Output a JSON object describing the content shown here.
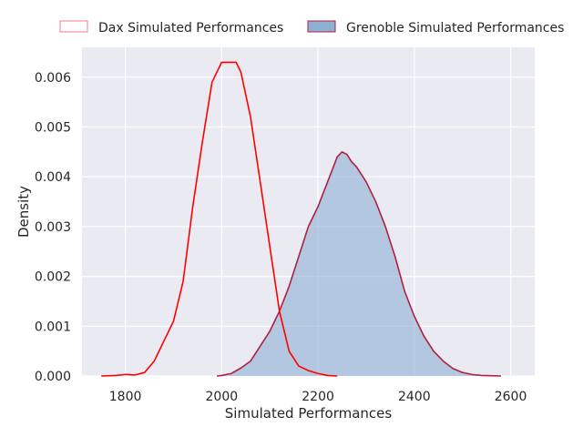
{
  "chart_data": {
    "type": "area",
    "xlabel": "Simulated Performances",
    "ylabel": "Density",
    "xlim": [
      1710,
      2650
    ],
    "ylim": [
      0,
      0.0066
    ],
    "xticks": [
      "1800",
      "2000",
      "2200",
      "2400",
      "2600"
    ],
    "yticks": [
      "0.000",
      "0.001",
      "0.002",
      "0.003",
      "0.004",
      "0.005",
      "0.006"
    ],
    "grid": true,
    "legend_position": "top",
    "series": [
      {
        "name": "Dax Simulated Performances",
        "fill": false,
        "line_color": "#ff0000",
        "legend_color": "#f08080",
        "x": [
          1750,
          1780,
          1800,
          1820,
          1840,
          1860,
          1880,
          1900,
          1920,
          1940,
          1960,
          1980,
          2000,
          2010,
          2020,
          2030,
          2040,
          2060,
          2080,
          2100,
          2120,
          2140,
          2160,
          2180,
          2200,
          2220,
          2240
        ],
        "y": [
          0.0,
          1e-05,
          3e-05,
          2e-05,
          7e-05,
          0.0003,
          0.0007,
          0.0011,
          0.0019,
          0.0034,
          0.0047,
          0.0059,
          0.0063,
          0.0063,
          0.0063,
          0.0063,
          0.0061,
          0.0052,
          0.0039,
          0.0026,
          0.0013,
          0.0005,
          0.0002,
          0.00011,
          5e-05,
          1e-05,
          0.0
        ]
      },
      {
        "name": "Grenoble Simulated Performances",
        "fill": true,
        "fill_color": "#8eb0d4",
        "line_color": "#b02040",
        "legend_color": "#8eb0d4",
        "x": [
          1990,
          2000,
          2020,
          2040,
          2060,
          2080,
          2100,
          2120,
          2140,
          2160,
          2180,
          2200,
          2220,
          2240,
          2250,
          2260,
          2270,
          2280,
          2300,
          2320,
          2340,
          2360,
          2380,
          2400,
          2420,
          2440,
          2460,
          2480,
          2500,
          2520,
          2540,
          2560,
          2580
        ],
        "y": [
          0.0,
          1e-05,
          5e-05,
          0.00016,
          0.0003,
          0.0006,
          0.0009,
          0.0013,
          0.0018,
          0.0024,
          0.003,
          0.0034,
          0.0039,
          0.0044,
          0.0045,
          0.00445,
          0.0043,
          0.0042,
          0.0039,
          0.0035,
          0.003,
          0.0024,
          0.0017,
          0.0012,
          0.0008,
          0.0005,
          0.0003,
          0.00015,
          7e-05,
          3e-05,
          1e-05,
          5e-06,
          0.0
        ]
      }
    ]
  }
}
